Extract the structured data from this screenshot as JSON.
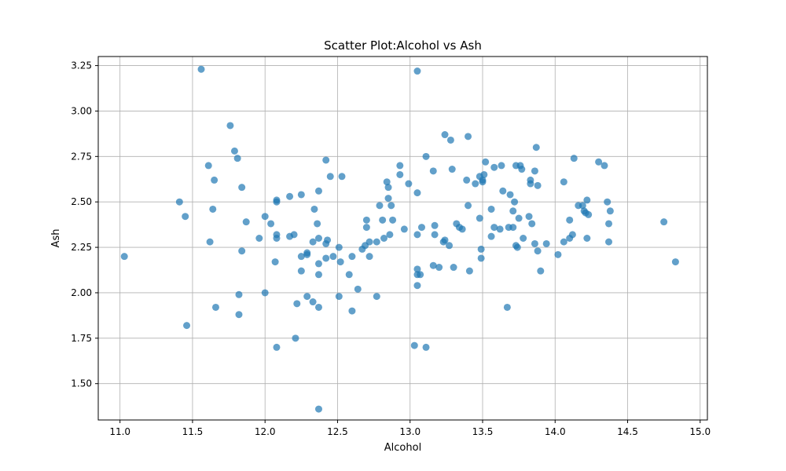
{
  "chart_data": {
    "type": "scatter",
    "title": "Scatter Plot:Alcohol vs Ash",
    "xlabel": "Alcohol",
    "ylabel": "Ash",
    "xlim": [
      10.85,
      15.05
    ],
    "ylim": [
      1.3,
      3.3
    ],
    "xticks": [
      11.0,
      11.5,
      12.0,
      12.5,
      13.0,
      13.5,
      14.0,
      14.5,
      15.0
    ],
    "xtick_labels": [
      "11.0",
      "11.5",
      "12.0",
      "12.5",
      "13.0",
      "13.5",
      "14.0",
      "14.5",
      "15.0"
    ],
    "yticks": [
      1.5,
      1.75,
      2.0,
      2.25,
      2.5,
      2.75,
      3.0,
      3.25
    ],
    "ytick_labels": [
      "1.50",
      "1.75",
      "2.00",
      "2.25",
      "2.50",
      "2.75",
      "3.00",
      "3.25"
    ],
    "grid": true,
    "color": "#1f77b4",
    "alpha": 0.7,
    "points": [
      [
        11.03,
        2.2
      ],
      [
        11.41,
        2.5
      ],
      [
        11.45,
        2.42
      ],
      [
        11.46,
        1.82
      ],
      [
        11.56,
        3.23
      ],
      [
        11.61,
        2.7
      ],
      [
        11.62,
        2.28
      ],
      [
        11.64,
        2.46
      ],
      [
        11.65,
        2.62
      ],
      [
        11.66,
        1.92
      ],
      [
        11.76,
        2.92
      ],
      [
        11.79,
        2.78
      ],
      [
        11.81,
        2.74
      ],
      [
        11.82,
        1.99
      ],
      [
        11.82,
        1.88
      ],
      [
        11.84,
        2.58
      ],
      [
        11.84,
        2.23
      ],
      [
        11.87,
        2.39
      ],
      [
        11.96,
        2.3
      ],
      [
        12.0,
        2.42
      ],
      [
        12.0,
        2.0
      ],
      [
        12.04,
        2.38
      ],
      [
        12.07,
        2.17
      ],
      [
        12.08,
        2.51
      ],
      [
        12.08,
        2.5
      ],
      [
        12.08,
        2.32
      ],
      [
        12.08,
        2.3
      ],
      [
        12.08,
        1.7
      ],
      [
        12.17,
        2.53
      ],
      [
        12.17,
        2.31
      ],
      [
        12.2,
        2.32
      ],
      [
        12.21,
        1.75
      ],
      [
        12.22,
        1.94
      ],
      [
        12.25,
        2.54
      ],
      [
        12.25,
        2.2
      ],
      [
        12.25,
        2.12
      ],
      [
        12.29,
        2.22
      ],
      [
        12.29,
        2.21
      ],
      [
        12.29,
        1.98
      ],
      [
        12.33,
        2.28
      ],
      [
        12.34,
        2.46
      ],
      [
        12.33,
        1.95
      ],
      [
        12.36,
        2.38
      ],
      [
        12.37,
        2.56
      ],
      [
        12.37,
        2.3
      ],
      [
        12.37,
        2.16
      ],
      [
        12.37,
        2.1
      ],
      [
        12.37,
        1.92
      ],
      [
        12.37,
        1.36
      ],
      [
        12.42,
        2.73
      ],
      [
        12.42,
        2.27
      ],
      [
        12.42,
        2.19
      ],
      [
        12.43,
        2.29
      ],
      [
        12.45,
        2.64
      ],
      [
        12.47,
        2.2
      ],
      [
        12.51,
        2.25
      ],
      [
        12.51,
        1.98
      ],
      [
        12.52,
        2.17
      ],
      [
        12.53,
        2.64
      ],
      [
        12.58,
        2.1
      ],
      [
        12.6,
        2.2
      ],
      [
        12.6,
        1.9
      ],
      [
        12.64,
        2.02
      ],
      [
        12.67,
        2.24
      ],
      [
        12.69,
        2.26
      ],
      [
        12.7,
        2.4
      ],
      [
        12.7,
        2.36
      ],
      [
        12.72,
        2.2
      ],
      [
        12.72,
        2.28
      ],
      [
        12.77,
        2.28
      ],
      [
        12.77,
        1.98
      ],
      [
        12.79,
        2.48
      ],
      [
        12.81,
        2.4
      ],
      [
        12.82,
        2.3
      ],
      [
        12.84,
        2.61
      ],
      [
        12.85,
        2.52
      ],
      [
        12.85,
        2.58
      ],
      [
        12.86,
        2.32
      ],
      [
        12.87,
        2.48
      ],
      [
        12.88,
        2.4
      ],
      [
        12.93,
        2.7
      ],
      [
        12.93,
        2.65
      ],
      [
        12.96,
        2.35
      ],
      [
        12.99,
        2.6
      ],
      [
        13.03,
        1.71
      ],
      [
        13.05,
        3.22
      ],
      [
        13.05,
        2.55
      ],
      [
        13.05,
        2.32
      ],
      [
        13.05,
        2.13
      ],
      [
        13.05,
        2.1
      ],
      [
        13.05,
        2.04
      ],
      [
        13.07,
        2.1
      ],
      [
        13.08,
        2.36
      ],
      [
        13.11,
        2.75
      ],
      [
        13.11,
        1.7
      ],
      [
        13.16,
        2.67
      ],
      [
        13.16,
        2.15
      ],
      [
        13.17,
        2.37
      ],
      [
        13.17,
        2.32
      ],
      [
        13.2,
        2.14
      ],
      [
        13.24,
        2.87
      ],
      [
        13.23,
        2.28
      ],
      [
        13.24,
        2.29
      ],
      [
        13.27,
        2.26
      ],
      [
        13.28,
        2.84
      ],
      [
        13.29,
        2.68
      ],
      [
        13.3,
        2.14
      ],
      [
        13.32,
        2.38
      ],
      [
        13.34,
        2.36
      ],
      [
        13.36,
        2.35
      ],
      [
        13.39,
        2.62
      ],
      [
        13.4,
        2.86
      ],
      [
        13.4,
        2.48
      ],
      [
        13.41,
        2.12
      ],
      [
        13.45,
        2.6
      ],
      [
        13.48,
        2.64
      ],
      [
        13.48,
        2.41
      ],
      [
        13.49,
        2.24
      ],
      [
        13.49,
        2.19
      ],
      [
        13.5,
        2.62
      ],
      [
        13.5,
        2.61
      ],
      [
        13.51,
        2.65
      ],
      [
        13.52,
        2.72
      ],
      [
        13.56,
        2.46
      ],
      [
        13.56,
        2.31
      ],
      [
        13.58,
        2.69
      ],
      [
        13.58,
        2.36
      ],
      [
        13.62,
        2.35
      ],
      [
        13.63,
        2.7
      ],
      [
        13.64,
        2.56
      ],
      [
        13.67,
        1.92
      ],
      [
        13.68,
        2.36
      ],
      [
        13.69,
        2.54
      ],
      [
        13.71,
        2.45
      ],
      [
        13.71,
        2.36
      ],
      [
        13.72,
        2.5
      ],
      [
        13.73,
        2.7
      ],
      [
        13.73,
        2.26
      ],
      [
        13.74,
        2.25
      ],
      [
        13.75,
        2.41
      ],
      [
        13.76,
        2.7
      ],
      [
        13.77,
        2.68
      ],
      [
        13.78,
        2.3
      ],
      [
        13.82,
        2.42
      ],
      [
        13.83,
        2.62
      ],
      [
        13.83,
        2.6
      ],
      [
        13.84,
        2.38
      ],
      [
        13.86,
        2.67
      ],
      [
        13.86,
        2.27
      ],
      [
        13.87,
        2.8
      ],
      [
        13.88,
        2.59
      ],
      [
        13.88,
        2.23
      ],
      [
        13.9,
        2.12
      ],
      [
        13.94,
        2.27
      ],
      [
        14.02,
        2.21
      ],
      [
        14.06,
        2.61
      ],
      [
        14.06,
        2.28
      ],
      [
        14.1,
        2.4
      ],
      [
        14.1,
        2.3
      ],
      [
        14.12,
        2.32
      ],
      [
        14.13,
        2.74
      ],
      [
        14.16,
        2.48
      ],
      [
        14.19,
        2.48
      ],
      [
        14.2,
        2.45
      ],
      [
        14.21,
        2.44
      ],
      [
        14.22,
        2.51
      ],
      [
        14.22,
        2.3
      ],
      [
        14.23,
        2.43
      ],
      [
        14.3,
        2.72
      ],
      [
        14.34,
        2.7
      ],
      [
        14.36,
        2.5
      ],
      [
        14.37,
        2.38
      ],
      [
        14.37,
        2.28
      ],
      [
        14.38,
        2.45
      ],
      [
        14.75,
        2.39
      ],
      [
        14.83,
        2.17
      ]
    ]
  }
}
